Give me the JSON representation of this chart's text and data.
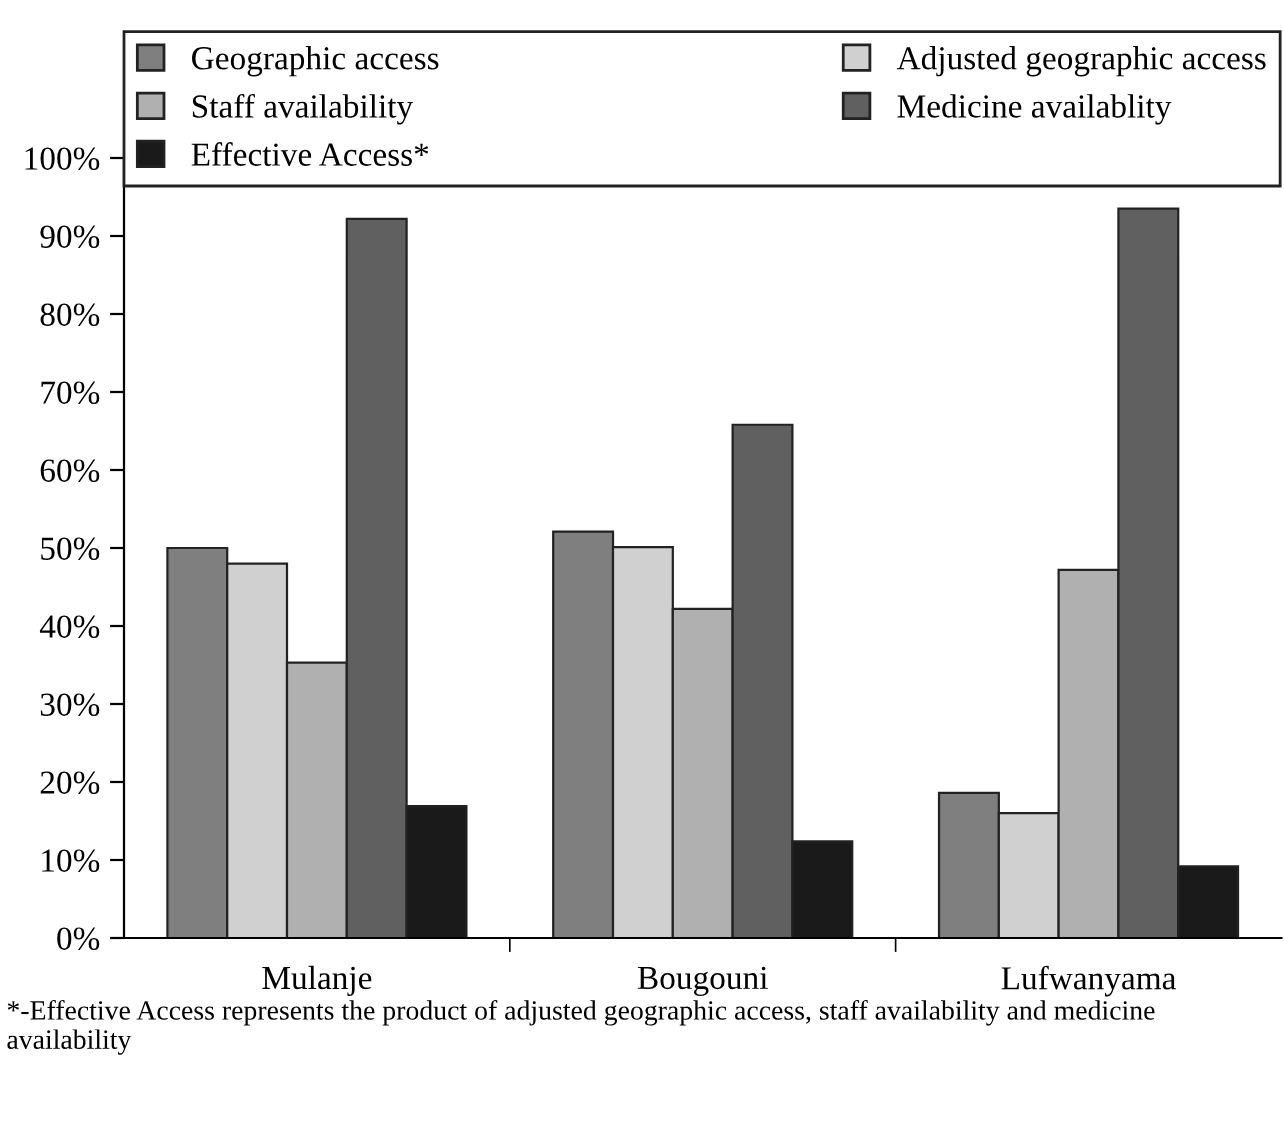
{
  "chart_data": {
    "type": "bar",
    "categories": [
      "Mulanje",
      "Bougouni",
      "Lufwanyama"
    ],
    "series": [
      {
        "name": "Geographic access",
        "color": "#7f7f7f",
        "values": [
          50.0,
          52.1,
          18.6
        ]
      },
      {
        "name": "Adjusted geographic access",
        "color": "#d0d0d0",
        "values": [
          48.0,
          50.1,
          16.0
        ]
      },
      {
        "name": "Staff availability",
        "color": "#b0b0b0",
        "values": [
          35.3,
          42.2,
          47.2
        ]
      },
      {
        "name": "Medicine availablity",
        "color": "#606060",
        "values": [
          92.2,
          65.8,
          93.5
        ]
      },
      {
        "name": "Effective Access*",
        "color": "#1a1a1a",
        "values": [
          16.9,
          12.4,
          9.2
        ]
      }
    ],
    "ylim": [
      0,
      100
    ],
    "yticks": [
      {
        "value": 0,
        "label": "0%"
      },
      {
        "value": 10,
        "label": "10%"
      },
      {
        "value": 20,
        "label": "20%"
      },
      {
        "value": 30,
        "label": "30%"
      },
      {
        "value": 40,
        "label": "40%"
      },
      {
        "value": 50,
        "label": "50%"
      },
      {
        "value": 60,
        "label": "60%"
      },
      {
        "value": 70,
        "label": "70%"
      },
      {
        "value": 80,
        "label": "80%"
      },
      {
        "value": 90,
        "label": "90%"
      },
      {
        "value": 100,
        "label": "100%"
      }
    ],
    "grid": false,
    "legend": "top",
    "annotations": [
      "*-Effective Access represents the product of adjusted geographic access, staff availability and medicine availability"
    ]
  }
}
